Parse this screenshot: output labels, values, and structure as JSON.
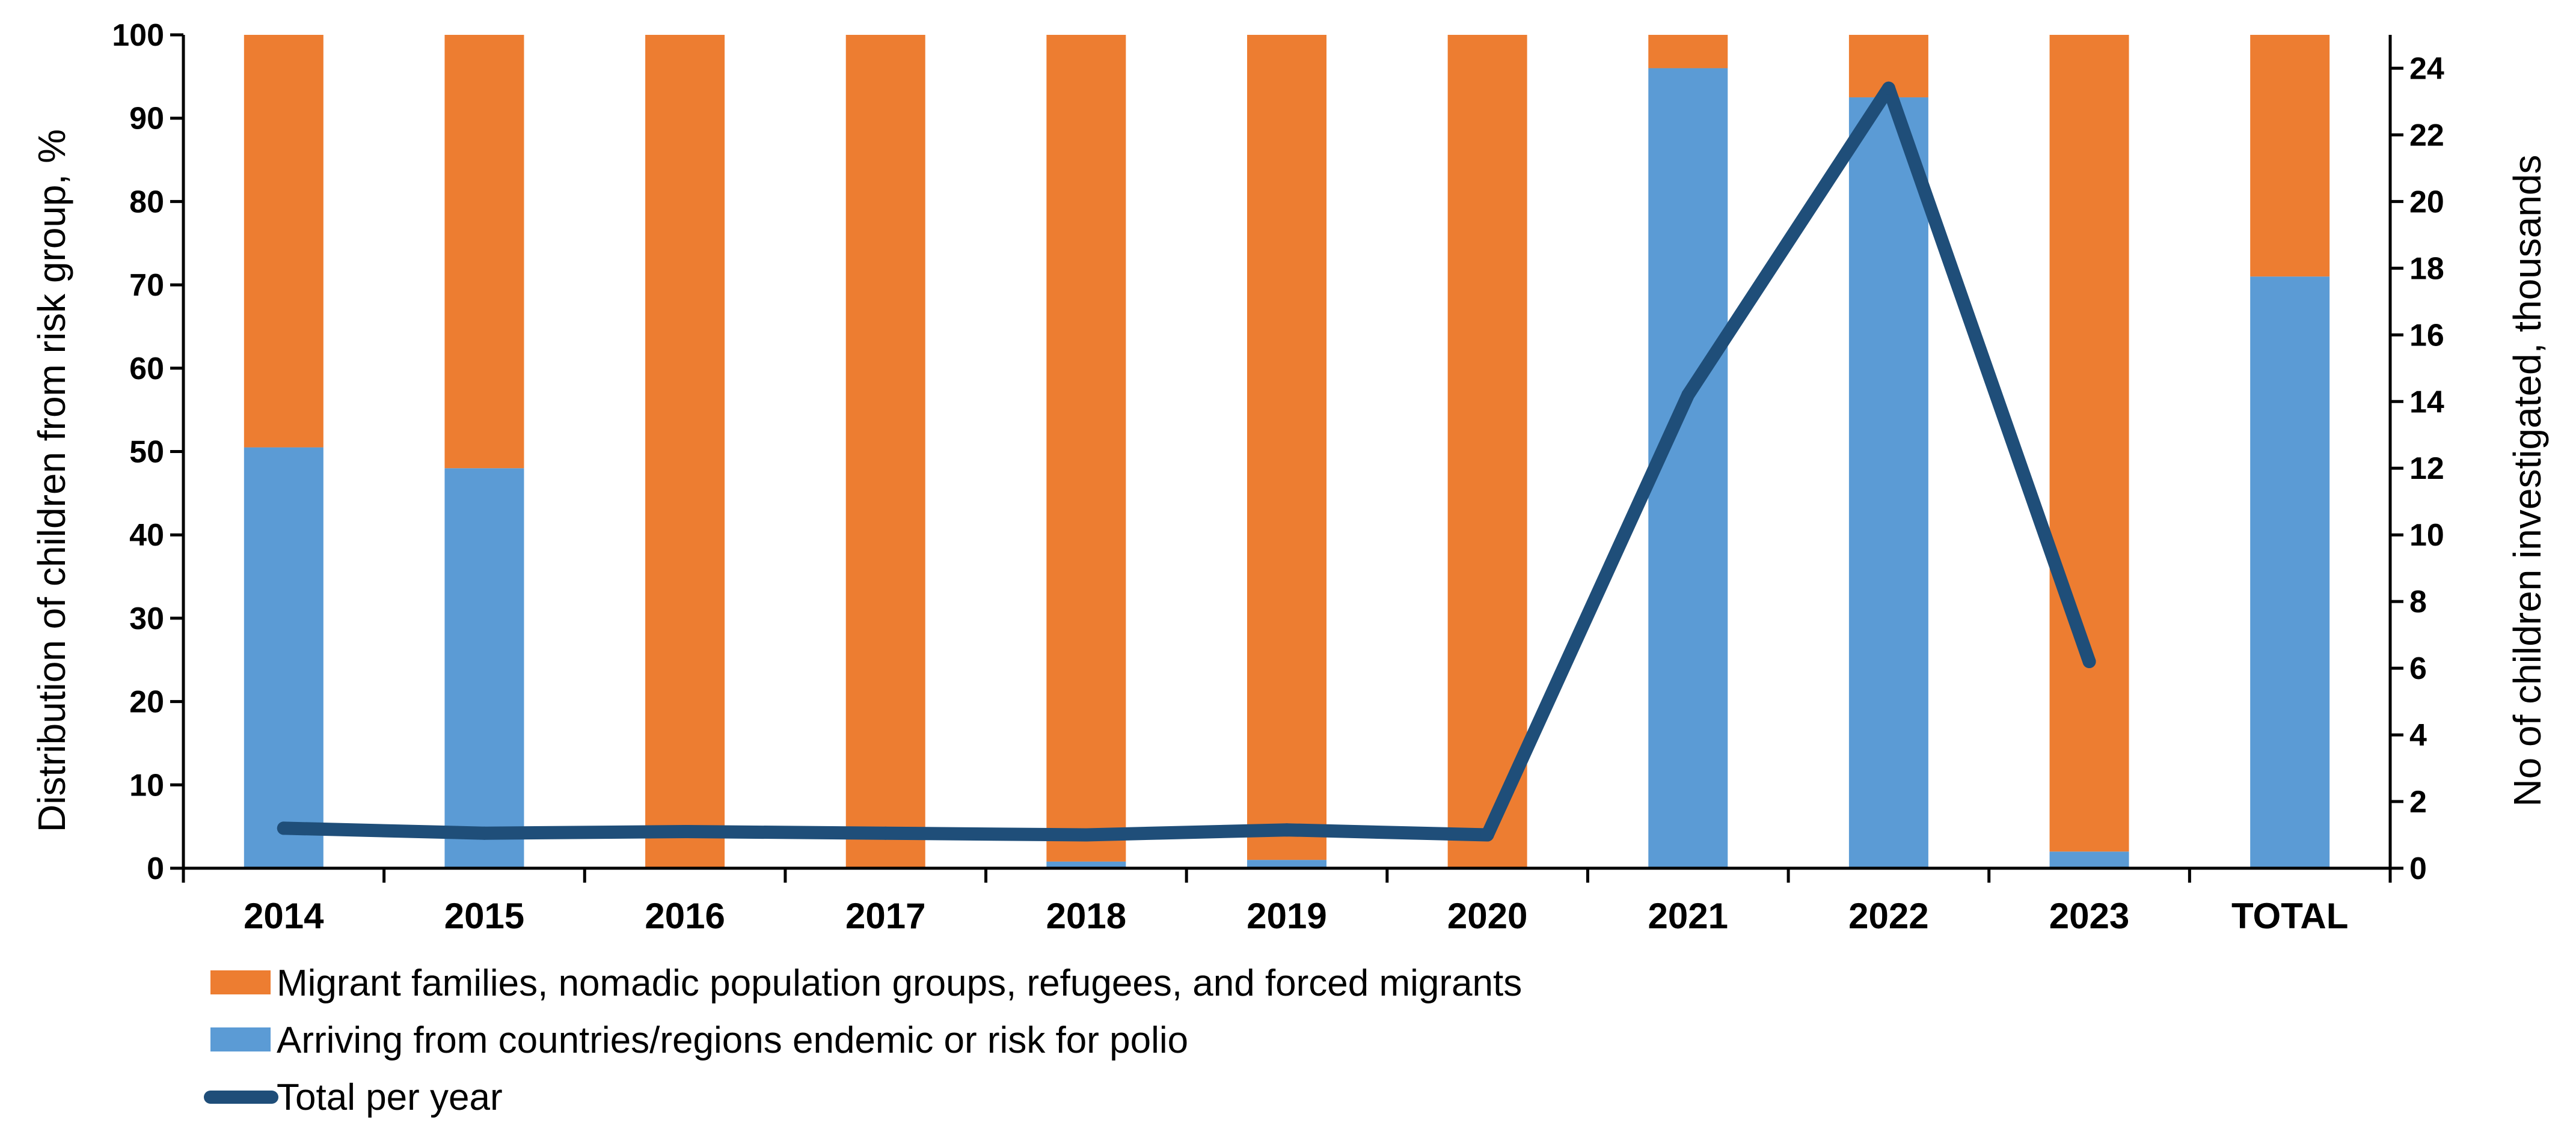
{
  "chart_data": {
    "type": "bar",
    "stacked": true,
    "categories": [
      "2014",
      "2015",
      "2016",
      "2017",
      "2018",
      "2019",
      "2020",
      "2021",
      "2022",
      "2023",
      "TOTAL"
    ],
    "series": [
      {
        "name": "Arriving from countries/regions endemic or risk for polio",
        "axis": "left",
        "color": "#5b9bd5",
        "values": [
          50.5,
          48,
          0,
          0,
          0.8,
          1,
          0,
          96,
          92.5,
          2,
          71
        ]
      },
      {
        "name": "Migrant families, nomadic population groups, refugees, and forced migrants",
        "axis": "left",
        "color": "#ed7d31",
        "values": [
          49.5,
          52,
          100,
          100,
          99.2,
          99,
          100,
          4,
          7.5,
          98,
          29
        ]
      }
    ],
    "line_series": {
      "name": "Total per year",
      "axis": "right",
      "color": "#1f4e79",
      "categories": [
        "2014",
        "2015",
        "2016",
        "2017",
        "2018",
        "2019",
        "2020",
        "2021",
        "2022",
        "2023"
      ],
      "values": [
        1.2,
        1.05,
        1.1,
        1.05,
        1.0,
        1.15,
        1.0,
        14.2,
        23.4,
        6.2
      ]
    },
    "left_axis": {
      "label": "Distribution  of children  from  risk group,  %",
      "ylim": [
        0,
        100
      ],
      "ticks": [
        "0",
        "10",
        "20",
        "30",
        "40",
        "50",
        "60",
        "70",
        "80",
        "90",
        "100"
      ]
    },
    "right_axis": {
      "label": "No of children  investigated,  thousands",
      "ylim": [
        0,
        25
      ],
      "ticks": [
        "0",
        "2",
        "4",
        "6",
        "8",
        "10",
        "12",
        "14",
        "16",
        "18",
        "20",
        "22",
        "24"
      ]
    },
    "legend": {
      "position": "bottom-left",
      "items": [
        "Migrant families, nomadic population groups, refugees, and forced migrants",
        "Arriving from countries/regions endemic or risk for polio",
        "Total per year"
      ]
    },
    "title": "",
    "grid": false
  }
}
